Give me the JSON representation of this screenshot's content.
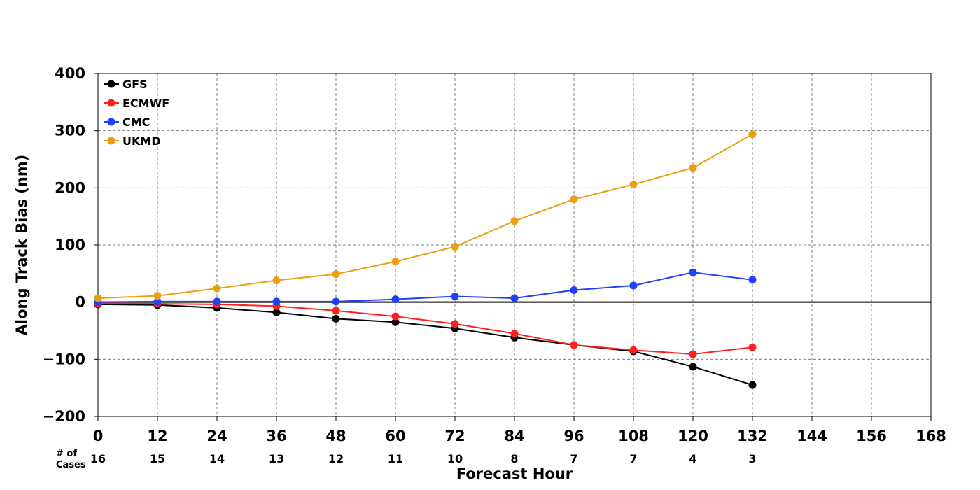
{
  "chart_data": {
    "type": "line",
    "title": "",
    "xlabel": "Forecast Hour",
    "ylabel": "Along Track Bias (nm)",
    "xlim": [
      0,
      168
    ],
    "ylim": [
      -200,
      400
    ],
    "x_ticks": [
      0,
      12,
      24,
      36,
      48,
      60,
      72,
      84,
      96,
      108,
      120,
      132,
      144,
      156,
      168
    ],
    "x_tick_labels": [
      "0",
      "12",
      "24",
      "36",
      "48",
      "60",
      "72",
      "84",
      "96",
      "108",
      "120",
      "132",
      "144",
      "156",
      "168"
    ],
    "y_ticks": [
      -200,
      -100,
      0,
      100,
      200,
      300,
      400
    ],
    "y_tick_labels": [
      "−200",
      "−100",
      "0",
      "100",
      "200",
      "300",
      "400"
    ],
    "grid": true,
    "legend_position": "top-left",
    "zero_line": true,
    "x": [
      0,
      12,
      24,
      36,
      48,
      60,
      72,
      84,
      96,
      108,
      120,
      132
    ],
    "series": [
      {
        "name": "GFS",
        "color": "#000000",
        "values": [
          -4,
          -5,
          -10,
          -18,
          -29,
          -35,
          -46,
          -62,
          -75,
          -86,
          -113,
          -145
        ]
      },
      {
        "name": "ECMWF",
        "color": "#ff2020",
        "values": [
          -2,
          -3,
          -4,
          -7,
          -15,
          -25,
          -38,
          -55,
          -75,
          -84,
          -91,
          -79
        ]
      },
      {
        "name": "CMC",
        "color": "#2040ff",
        "values": [
          0,
          1,
          1,
          1,
          1,
          5,
          10,
          7,
          21,
          29,
          52,
          39
        ]
      },
      {
        "name": "UKMD",
        "color": "#e8a010",
        "values": [
          7,
          11,
          24,
          38,
          49,
          71,
          97,
          142,
          180,
          206,
          235,
          294
        ]
      }
    ],
    "cases": {
      "label_line1": "# of",
      "label_line2": "Cases",
      "x": [
        0,
        12,
        24,
        36,
        48,
        60,
        72,
        84,
        96,
        108,
        120,
        132
      ],
      "counts": [
        "16",
        "15",
        "14",
        "13",
        "12",
        "11",
        "10",
        "8",
        "7",
        "7",
        "4",
        "3"
      ]
    }
  }
}
